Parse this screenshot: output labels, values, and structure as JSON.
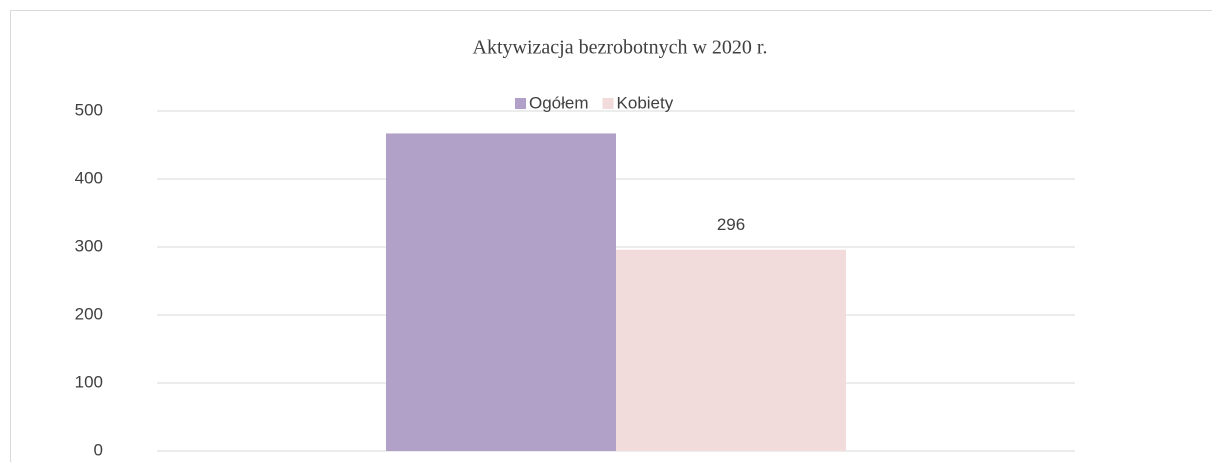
{
  "chart_data": {
    "type": "bar",
    "title": "Aktywizacja bezrobotnych w 2020 r.",
    "categories": [
      null
    ],
    "series": [
      {
        "name": "Ogółem",
        "color": "#b1a0c7",
        "values": [
          467
        ]
      },
      {
        "name": "Kobiety",
        "color": "#f2dcdb",
        "values": [
          296
        ],
        "data_labels": true
      }
    ],
    "ylim": [
      0,
      500
    ],
    "yticks": [
      0,
      100,
      200,
      300,
      400,
      500
    ],
    "grid": true,
    "legend": "top"
  }
}
